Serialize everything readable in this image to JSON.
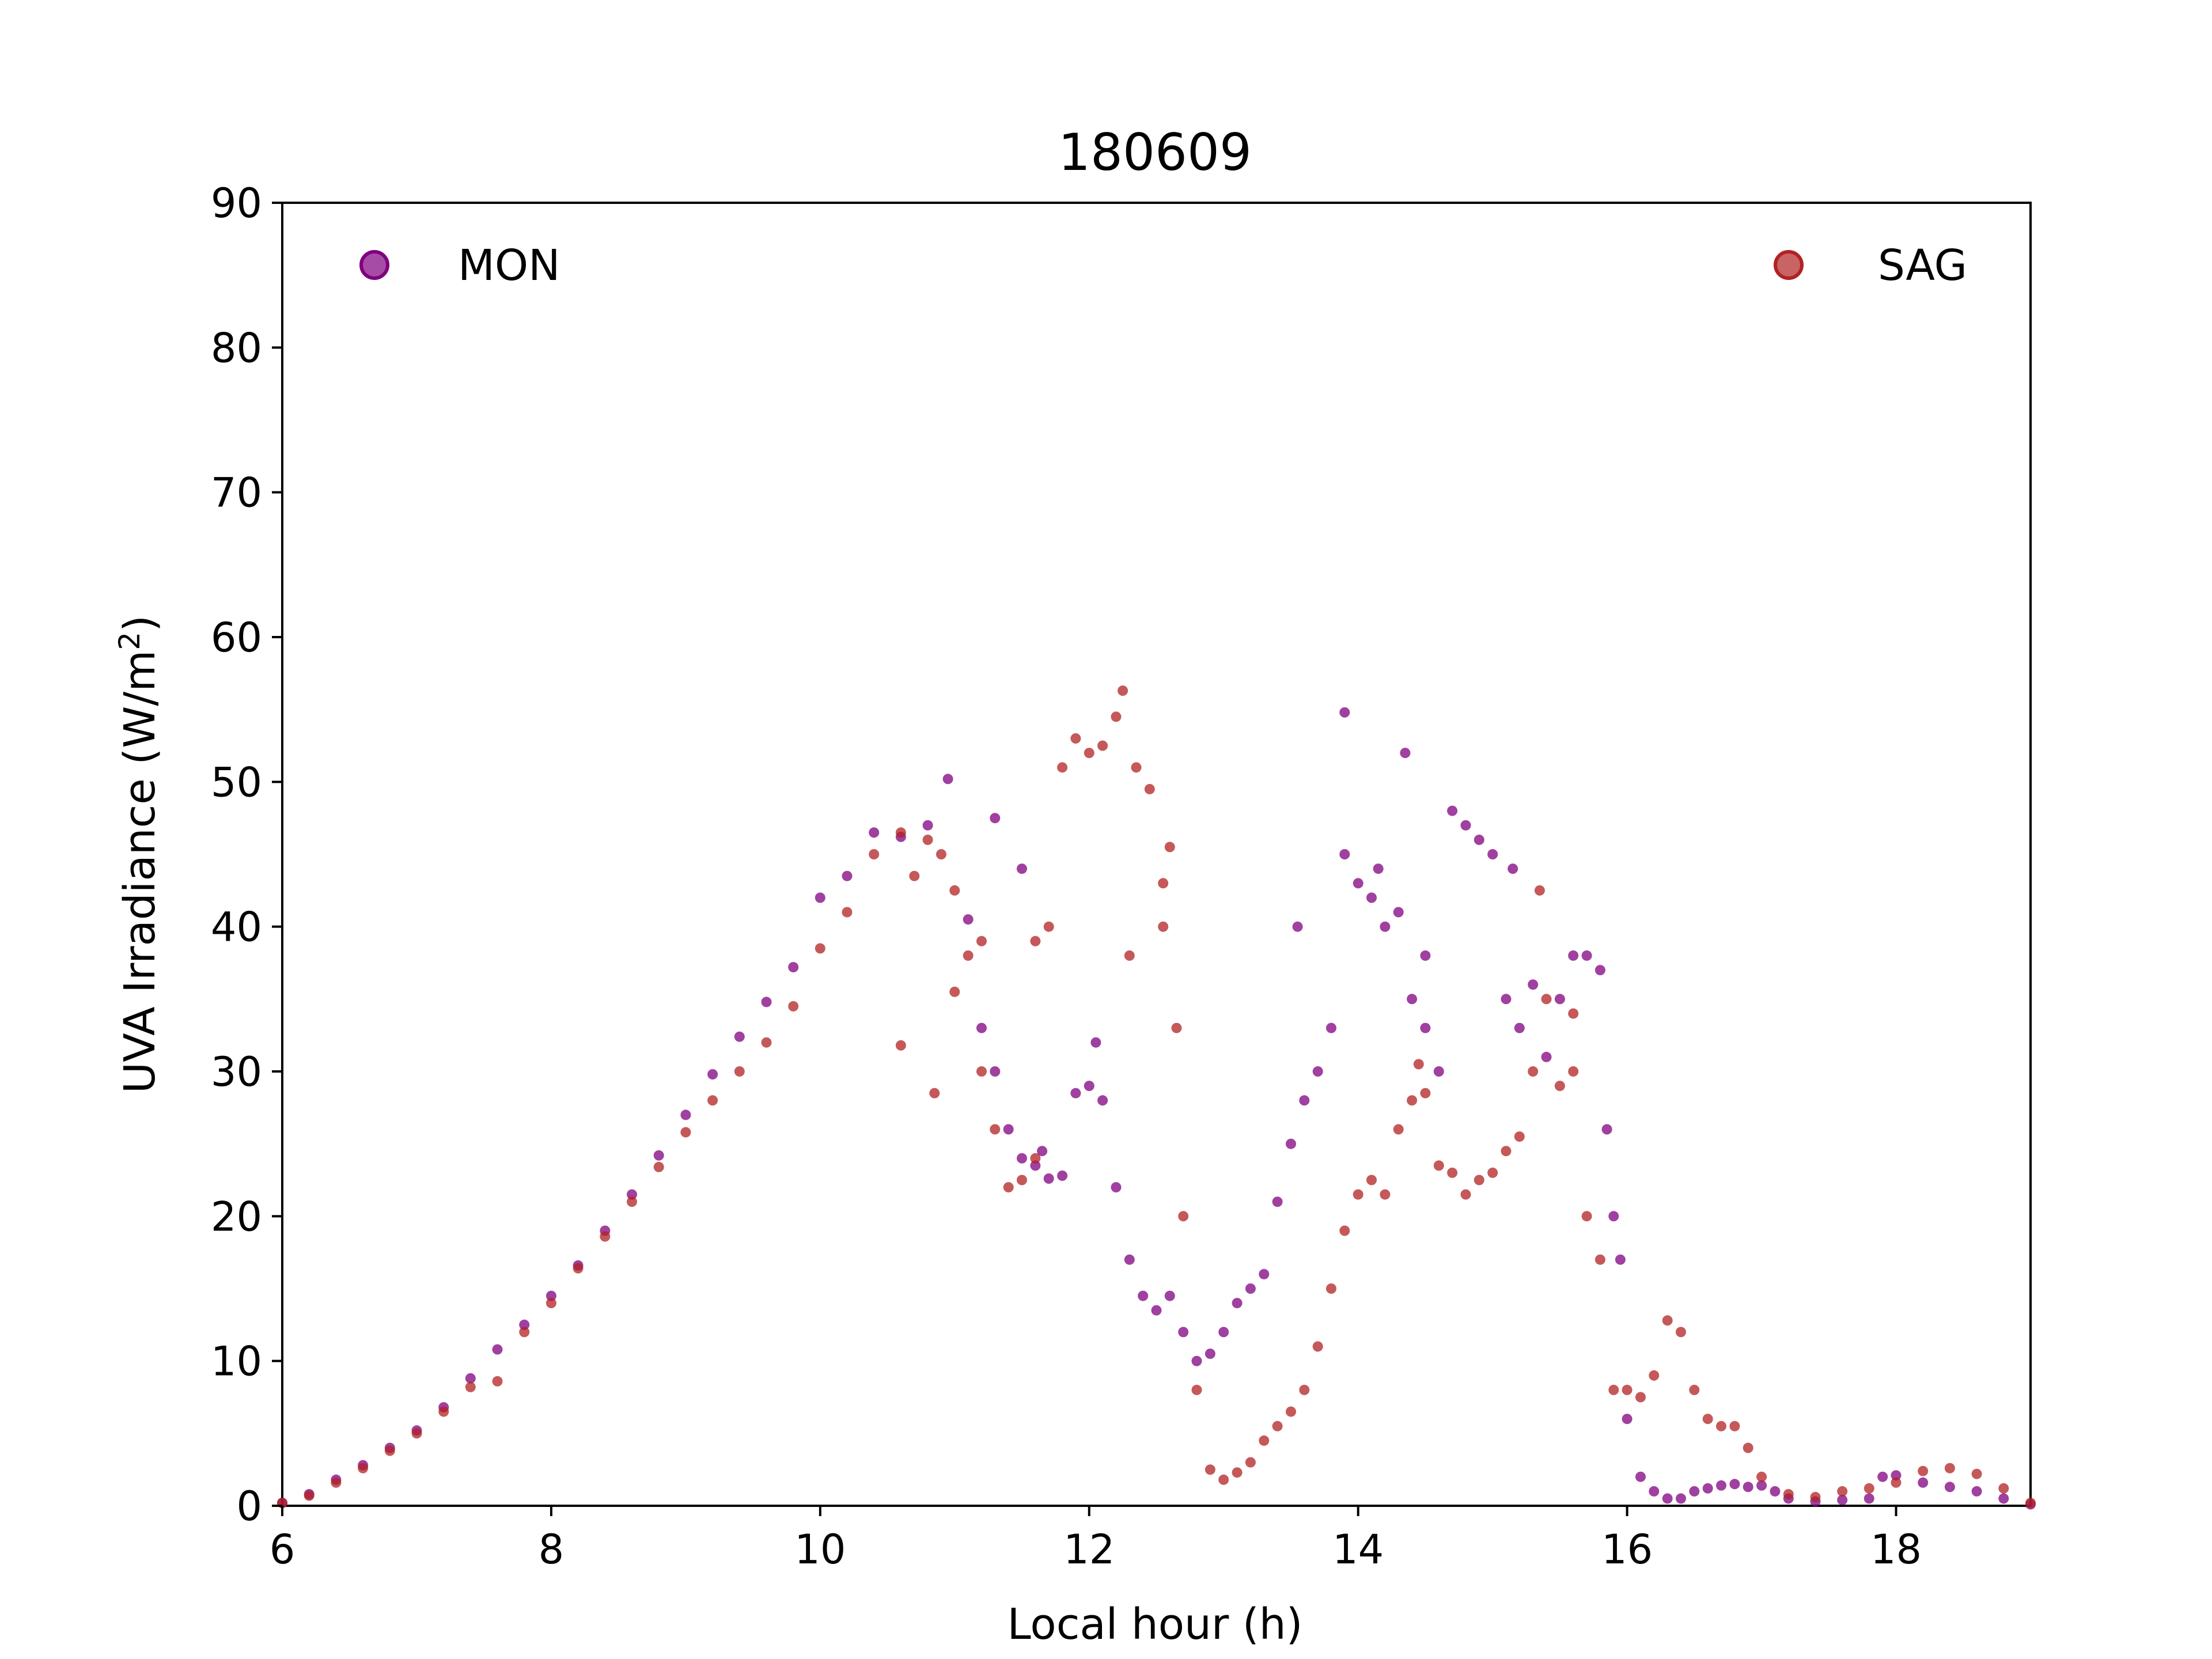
{
  "chart_data": {
    "type": "scatter",
    "title": "180609",
    "xlabel": "Local hour (h)",
    "ylabel_main": "UVA Irradiance (W/m",
    "ylabel_sup": "2",
    "ylabel_end": ")",
    "xlim": [
      6,
      19
    ],
    "ylim": [
      0,
      90
    ],
    "xticks": [
      6,
      8,
      10,
      12,
      14,
      16,
      18
    ],
    "yticks": [
      0,
      10,
      20,
      30,
      40,
      50,
      60,
      70,
      80,
      90
    ],
    "legend_placement": "top",
    "grid": false,
    "series": [
      {
        "name": "MON",
        "color": "#800080",
        "points": [
          [
            6.0,
            0.2
          ],
          [
            6.2,
            0.8
          ],
          [
            6.4,
            1.8
          ],
          [
            6.6,
            2.8
          ],
          [
            6.8,
            4.0
          ],
          [
            7.0,
            5.2
          ],
          [
            7.2,
            6.8
          ],
          [
            7.4,
            8.8
          ],
          [
            7.6,
            10.8
          ],
          [
            7.8,
            12.5
          ],
          [
            8.0,
            14.5
          ],
          [
            8.2,
            16.6
          ],
          [
            8.4,
            19.0
          ],
          [
            8.6,
            21.5
          ],
          [
            8.8,
            24.2
          ],
          [
            9.0,
            27.0
          ],
          [
            9.2,
            29.8
          ],
          [
            9.4,
            32.4
          ],
          [
            9.6,
            34.8
          ],
          [
            9.8,
            37.2
          ],
          [
            10.0,
            42.0
          ],
          [
            10.2,
            43.5
          ],
          [
            10.4,
            46.5
          ],
          [
            10.6,
            46.2
          ],
          [
            10.8,
            47.0
          ],
          [
            10.95,
            50.2
          ],
          [
            11.1,
            40.5
          ],
          [
            11.2,
            33.0
          ],
          [
            11.3,
            30.0
          ],
          [
            11.4,
            26.0
          ],
          [
            11.5,
            24.0
          ],
          [
            11.6,
            23.5
          ],
          [
            11.7,
            22.6
          ],
          [
            11.8,
            22.8
          ],
          [
            11.9,
            28.5
          ],
          [
            12.0,
            29.0
          ],
          [
            12.05,
            32.0
          ],
          [
            12.1,
            28.0
          ],
          [
            12.2,
            22.0
          ],
          [
            12.3,
            17.0
          ],
          [
            12.4,
            14.5
          ],
          [
            12.5,
            13.5
          ],
          [
            12.6,
            14.5
          ],
          [
            12.7,
            12.0
          ],
          [
            12.8,
            10.0
          ],
          [
            12.9,
            10.5
          ],
          [
            13.0,
            12.0
          ],
          [
            13.1,
            14.0
          ],
          [
            13.2,
            15.0
          ],
          [
            13.3,
            16.0
          ],
          [
            13.4,
            21.0
          ],
          [
            13.5,
            25.0
          ],
          [
            13.6,
            28.0
          ],
          [
            13.7,
            30.0
          ],
          [
            13.8,
            33.0
          ],
          [
            13.9,
            45.0
          ],
          [
            14.0,
            43.0
          ],
          [
            14.1,
            42.0
          ],
          [
            14.2,
            40.0
          ],
          [
            14.3,
            41.0
          ],
          [
            14.4,
            35.0
          ],
          [
            14.5,
            33.0
          ],
          [
            14.6,
            30.0
          ],
          [
            14.7,
            48.0
          ],
          [
            14.8,
            47.0
          ],
          [
            14.9,
            46.0
          ],
          [
            15.0,
            45.0
          ],
          [
            15.1,
            35.0
          ],
          [
            15.2,
            33.0
          ],
          [
            15.3,
            36.0
          ],
          [
            15.4,
            31.0
          ],
          [
            15.5,
            35.0
          ],
          [
            15.6,
            38.0
          ],
          [
            15.7,
            38.0
          ],
          [
            15.8,
            37.0
          ],
          [
            15.9,
            20.0
          ],
          [
            16.0,
            6.0
          ],
          [
            16.1,
            2.0
          ],
          [
            16.2,
            1.0
          ],
          [
            16.3,
            0.5
          ],
          [
            16.4,
            0.5
          ],
          [
            16.5,
            1.0
          ],
          [
            16.6,
            1.2
          ],
          [
            16.7,
            1.4
          ],
          [
            16.8,
            1.5
          ],
          [
            16.9,
            1.3
          ],
          [
            17.0,
            1.4
          ],
          [
            17.1,
            1.0
          ],
          [
            17.2,
            0.5
          ],
          [
            17.4,
            0.3
          ],
          [
            17.6,
            0.4
          ],
          [
            17.8,
            0.5
          ],
          [
            17.9,
            2.0
          ],
          [
            18.0,
            2.1
          ],
          [
            18.2,
            1.6
          ],
          [
            18.4,
            1.3
          ],
          [
            18.6,
            1.0
          ],
          [
            18.8,
            0.5
          ],
          [
            19.0,
            0.1
          ],
          [
            14.15,
            44.0
          ],
          [
            14.35,
            52.0
          ],
          [
            13.9,
            54.8
          ],
          [
            13.55,
            40.0
          ],
          [
            15.15,
            44.0
          ],
          [
            11.3,
            47.5
          ],
          [
            11.5,
            44.0
          ],
          [
            15.85,
            26.0
          ],
          [
            15.95,
            17.0
          ],
          [
            14.5,
            38.0
          ],
          [
            11.65,
            24.5
          ]
        ]
      },
      {
        "name": "SAG",
        "color": "#B22222",
        "points": [
          [
            6.0,
            0.2
          ],
          [
            6.2,
            0.7
          ],
          [
            6.4,
            1.6
          ],
          [
            6.6,
            2.6
          ],
          [
            6.8,
            3.8
          ],
          [
            7.0,
            5.0
          ],
          [
            7.2,
            6.5
          ],
          [
            7.4,
            8.2
          ],
          [
            7.6,
            8.6
          ],
          [
            7.8,
            12.0
          ],
          [
            8.0,
            14.0
          ],
          [
            8.2,
            16.4
          ],
          [
            8.4,
            18.6
          ],
          [
            8.6,
            21.0
          ],
          [
            8.8,
            23.4
          ],
          [
            9.0,
            25.8
          ],
          [
            9.2,
            28.0
          ],
          [
            9.4,
            30.0
          ],
          [
            9.6,
            32.0
          ],
          [
            9.8,
            34.5
          ],
          [
            10.0,
            38.5
          ],
          [
            10.2,
            41.0
          ],
          [
            10.4,
            45.0
          ],
          [
            10.6,
            46.5
          ],
          [
            10.8,
            46.0
          ],
          [
            10.9,
            45.0
          ],
          [
            11.0,
            42.5
          ],
          [
            11.1,
            38.0
          ],
          [
            11.2,
            30.0
          ],
          [
            11.3,
            26.0
          ],
          [
            11.4,
            22.0
          ],
          [
            11.5,
            22.5
          ],
          [
            11.6,
            24.0
          ],
          [
            11.7,
            40.0
          ],
          [
            11.8,
            51.0
          ],
          [
            11.9,
            53.0
          ],
          [
            12.0,
            52.0
          ],
          [
            12.1,
            52.5
          ],
          [
            12.2,
            54.5
          ],
          [
            12.25,
            56.3
          ],
          [
            12.35,
            51.0
          ],
          [
            12.45,
            49.5
          ],
          [
            12.55,
            40.0
          ],
          [
            12.65,
            33.0
          ],
          [
            12.7,
            20.0
          ],
          [
            12.8,
            8.0
          ],
          [
            12.9,
            2.5
          ],
          [
            13.0,
            1.8
          ],
          [
            13.1,
            2.3
          ],
          [
            13.2,
            3.0
          ],
          [
            13.3,
            4.5
          ],
          [
            13.4,
            5.5
          ],
          [
            13.5,
            6.5
          ],
          [
            13.6,
            8.0
          ],
          [
            13.7,
            11.0
          ],
          [
            13.8,
            15.0
          ],
          [
            13.9,
            19.0
          ],
          [
            14.0,
            21.5
          ],
          [
            14.1,
            22.5
          ],
          [
            14.2,
            21.5
          ],
          [
            14.3,
            26.0
          ],
          [
            14.4,
            28.0
          ],
          [
            14.5,
            28.5
          ],
          [
            14.6,
            23.5
          ],
          [
            14.7,
            23.0
          ],
          [
            14.8,
            21.5
          ],
          [
            14.9,
            22.5
          ],
          [
            15.0,
            23.0
          ],
          [
            15.1,
            24.5
          ],
          [
            15.2,
            25.5
          ],
          [
            15.3,
            30.0
          ],
          [
            15.4,
            35.0
          ],
          [
            15.5,
            29.0
          ],
          [
            15.6,
            30.0
          ],
          [
            15.7,
            20.0
          ],
          [
            15.8,
            17.0
          ],
          [
            15.9,
            8.0
          ],
          [
            16.0,
            8.0
          ],
          [
            16.1,
            7.5
          ],
          [
            16.2,
            9.0
          ],
          [
            16.3,
            12.8
          ],
          [
            16.4,
            12.0
          ],
          [
            16.5,
            8.0
          ],
          [
            16.6,
            6.0
          ],
          [
            16.7,
            5.5
          ],
          [
            16.8,
            5.5
          ],
          [
            16.9,
            4.0
          ],
          [
            17.0,
            2.0
          ],
          [
            17.2,
            0.8
          ],
          [
            17.4,
            0.6
          ],
          [
            17.6,
            1.0
          ],
          [
            17.8,
            1.2
          ],
          [
            18.0,
            1.6
          ],
          [
            18.2,
            2.4
          ],
          [
            18.4,
            2.6
          ],
          [
            18.6,
            2.2
          ],
          [
            18.8,
            1.2
          ],
          [
            19.0,
            0.2
          ],
          [
            10.6,
            31.8
          ],
          [
            10.85,
            28.5
          ],
          [
            11.0,
            35.5
          ],
          [
            11.2,
            39.0
          ],
          [
            12.3,
            38.0
          ],
          [
            12.6,
            45.5
          ],
          [
            12.55,
            43.0
          ],
          [
            15.35,
            42.5
          ],
          [
            15.6,
            34.0
          ],
          [
            14.45,
            30.5
          ],
          [
            11.6,
            39.0
          ],
          [
            10.7,
            43.5
          ]
        ]
      }
    ]
  }
}
